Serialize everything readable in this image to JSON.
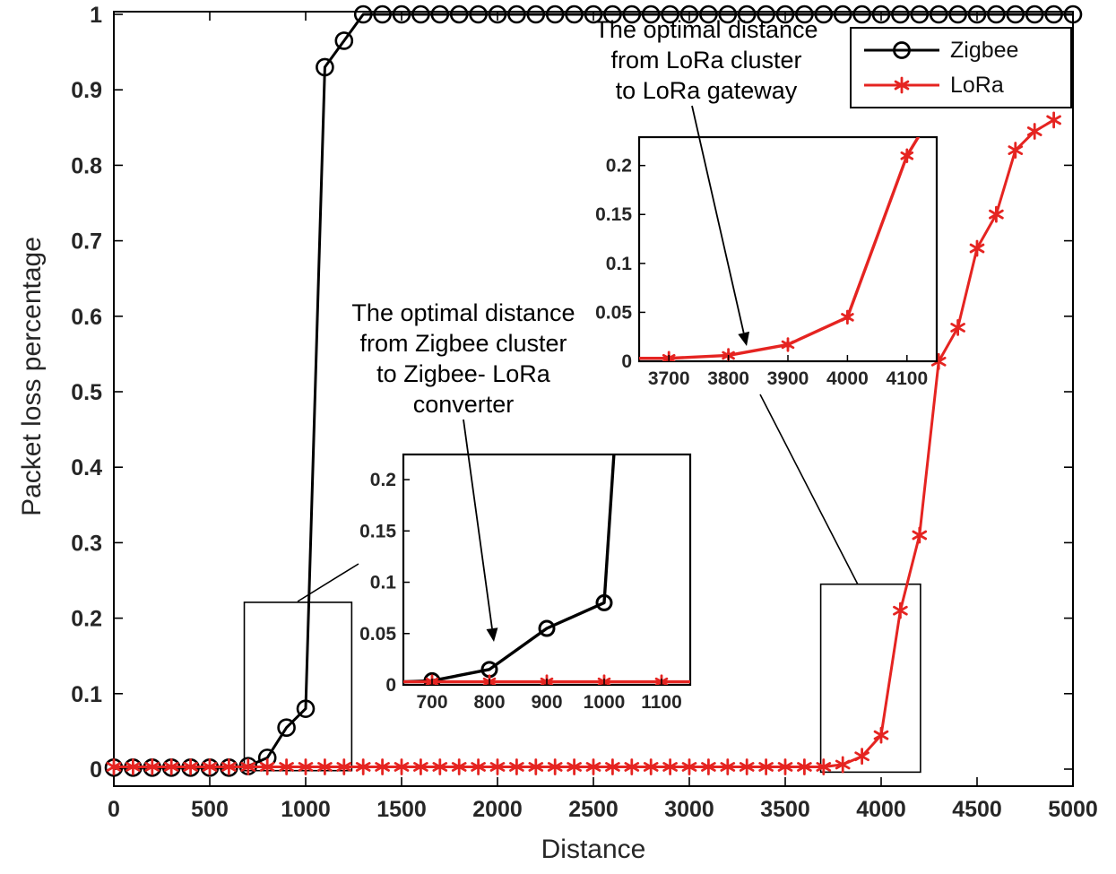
{
  "figure": {
    "background": "#ffffff",
    "tick_label_color": "#262626",
    "axis_color": "#000000"
  },
  "chart_data": {
    "type": "line",
    "title": "",
    "xlabel": "Distance",
    "ylabel": "Packet loss percentage",
    "xlim": [
      0,
      5000
    ],
    "ylim": [
      0,
      1
    ],
    "xticks": [
      0,
      500,
      1000,
      1500,
      2000,
      2500,
      3000,
      3500,
      4000,
      4500,
      5000
    ],
    "yticks": [
      0,
      0.1,
      0.2,
      0.3,
      0.4,
      0.5,
      0.6,
      0.7,
      0.8,
      0.9,
      1
    ],
    "grid": false,
    "legend_position": "top-right",
    "series": [
      {
        "name": "Zigbee",
        "color": "#000000",
        "marker": "circle",
        "x": [
          0,
          100,
          200,
          300,
          400,
          500,
          600,
          700,
          800,
          900,
          1000,
          1100,
          1200,
          1300,
          1400,
          1500,
          1600,
          1700,
          1800,
          1900,
          2000,
          2100,
          2200,
          2300,
          2400,
          2500,
          2600,
          2700,
          2800,
          2900,
          3000,
          3100,
          3200,
          3300,
          3400,
          3500,
          3600,
          3700,
          3800,
          3900,
          4000,
          4100,
          4200,
          4300,
          4400,
          4500,
          4600,
          4700,
          4800,
          4900,
          5000
        ],
        "y": [
          0.002,
          0.002,
          0.002,
          0.002,
          0.002,
          0.002,
          0.002,
          0.004,
          0.015,
          0.055,
          0.08,
          0.93,
          0.965,
          1,
          1,
          1,
          1,
          1,
          1,
          1,
          1,
          1,
          1,
          1,
          1,
          1,
          1,
          1,
          1,
          1,
          1,
          1,
          1,
          1,
          1,
          1,
          1,
          1,
          1,
          1,
          1,
          1,
          1,
          1,
          1,
          1,
          1,
          1,
          1,
          1,
          1
        ]
      },
      {
        "name": "LoRa",
        "color": "#e52421",
        "marker": "asterisk",
        "x": [
          0,
          100,
          200,
          300,
          400,
          500,
          600,
          700,
          800,
          900,
          1000,
          1100,
          1200,
          1300,
          1400,
          1500,
          1600,
          1700,
          1800,
          1900,
          2000,
          2100,
          2200,
          2300,
          2400,
          2500,
          2600,
          2700,
          2800,
          2900,
          3000,
          3100,
          3200,
          3300,
          3400,
          3500,
          3600,
          3700,
          3800,
          3900,
          4000,
          4100,
          4200,
          4300,
          4400,
          4500,
          4600,
          4700,
          4800,
          4900
        ],
        "y": [
          0.003,
          0.003,
          0.003,
          0.003,
          0.003,
          0.003,
          0.003,
          0.003,
          0.003,
          0.003,
          0.003,
          0.003,
          0.003,
          0.003,
          0.003,
          0.003,
          0.003,
          0.003,
          0.003,
          0.003,
          0.003,
          0.003,
          0.003,
          0.003,
          0.003,
          0.003,
          0.003,
          0.003,
          0.003,
          0.003,
          0.003,
          0.003,
          0.003,
          0.003,
          0.003,
          0.003,
          0.003,
          0.003,
          0.006,
          0.017,
          0.045,
          0.21,
          0.31,
          0.54,
          0.585,
          0.69,
          0.735,
          0.82,
          0.845,
          0.86
        ]
      }
    ],
    "insets": [
      {
        "name": "zigbee-zoom",
        "xlim": [
          650,
          1150
        ],
        "ylim": [
          0,
          0.2245
        ],
        "xticks": [
          700,
          800,
          900,
          1000,
          1100
        ],
        "yticks": [
          0,
          0.05,
          0.1,
          0.15,
          0.2
        ]
      },
      {
        "name": "lora-zoom",
        "xlim": [
          3650,
          4150
        ],
        "ylim": [
          0,
          0.229
        ],
        "xticks": [
          3700,
          3800,
          3900,
          4000,
          4100
        ],
        "yticks": [
          0,
          0.05,
          0.1,
          0.15,
          0.2
        ]
      }
    ],
    "zoom_rects": [
      {
        "x0": 680,
        "x1": 1240,
        "y0": -0.002,
        "y1": 0.221
      },
      {
        "x0": 3685,
        "x1": 4205,
        "y0": -0.004,
        "y1": 0.245
      }
    ],
    "annotations": [
      {
        "id": "lora-annotation",
        "lines": [
          "The optimal distance",
          "from LoRa cluster",
          "to LoRa gateway"
        ]
      },
      {
        "id": "zigbee-annotation",
        "lines": [
          "The optimal distance",
          "from Zigbee cluster",
          "to Zigbee- LoRa",
          "converter"
        ]
      }
    ]
  }
}
